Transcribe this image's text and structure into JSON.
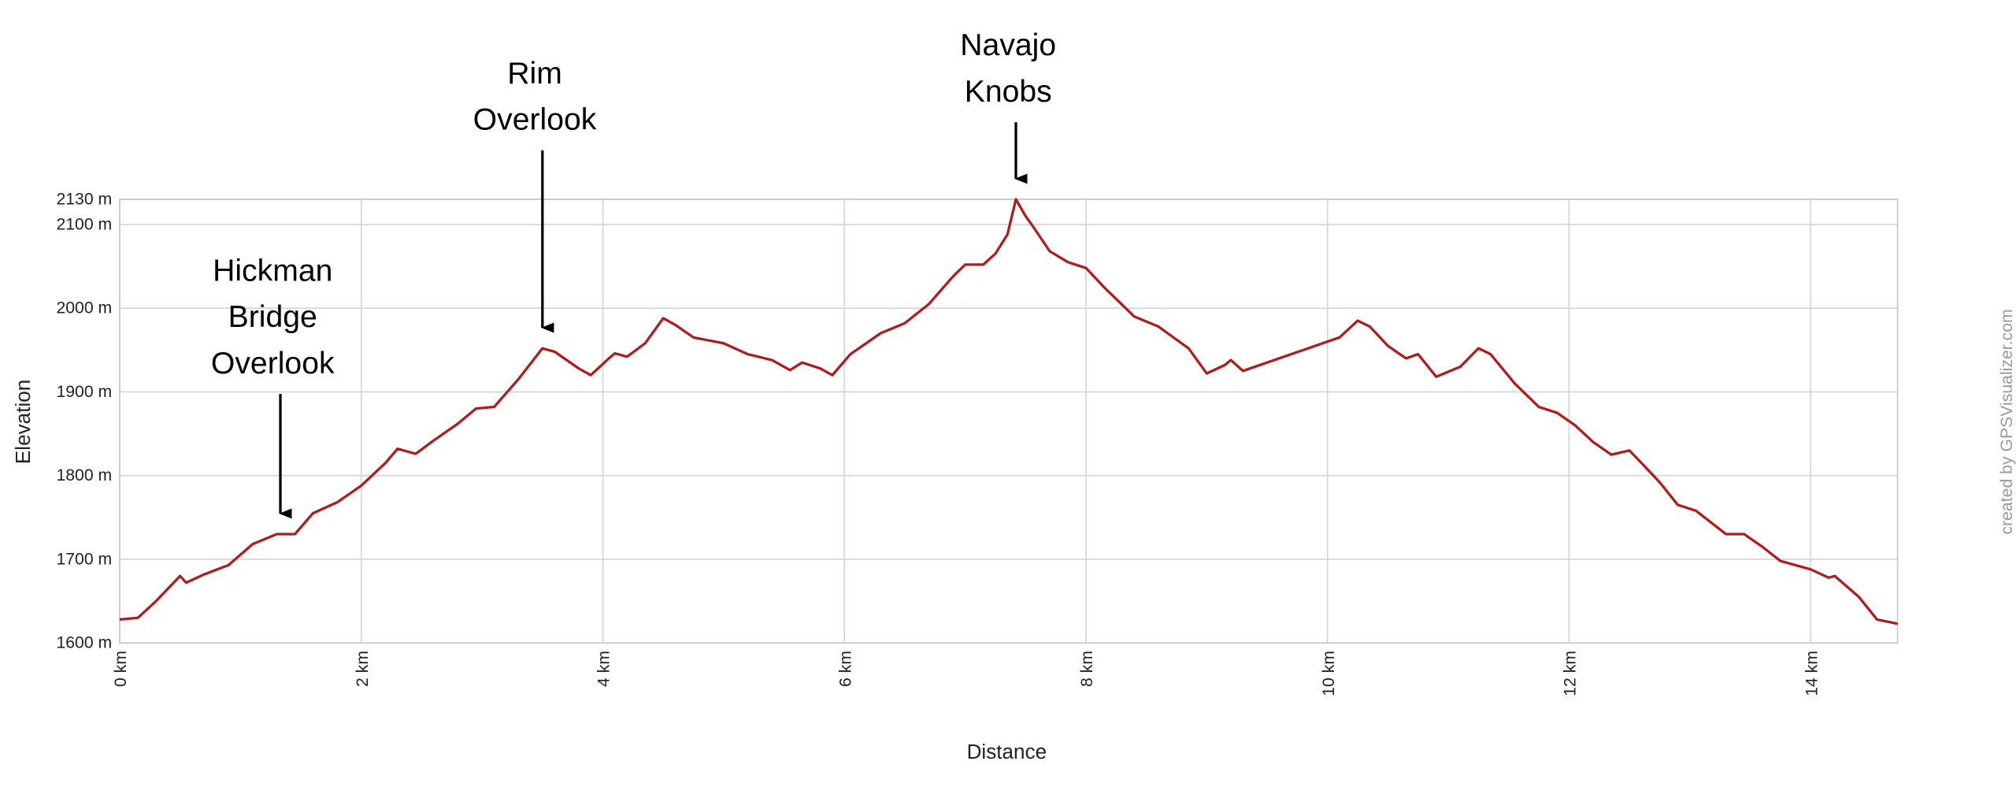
{
  "chart_data": {
    "type": "line",
    "x_label": "Distance",
    "y_label": "Elevation",
    "watermark": "created by GPSVisualizer.com",
    "color": "#b01c1c",
    "grid": true,
    "xlim": [
      0,
      14.72
    ],
    "ylim": [
      1600,
      2130
    ],
    "xticks": [
      {
        "value": 0,
        "label": "0 km"
      },
      {
        "value": 2,
        "label": "2 km"
      },
      {
        "value": 4,
        "label": "4 km"
      },
      {
        "value": 6,
        "label": "6 km"
      },
      {
        "value": 8,
        "label": "8 km"
      },
      {
        "value": 10,
        "label": "10 km"
      },
      {
        "value": 12,
        "label": "12 km"
      },
      {
        "value": 14,
        "label": "14 km"
      }
    ],
    "yticks": [
      {
        "value": 1600,
        "label": "1600 m"
      },
      {
        "value": 1700,
        "label": "1700 m"
      },
      {
        "value": 1800,
        "label": "1800 m"
      },
      {
        "value": 1900,
        "label": "1900 m"
      },
      {
        "value": 2000,
        "label": "2000 m"
      },
      {
        "value": 2100,
        "label": "2100 m"
      },
      {
        "value": 2130,
        "label": "2130 m"
      }
    ],
    "x": [
      0,
      0.15,
      0.3,
      0.5,
      0.55,
      0.7,
      0.9,
      1.1,
      1.3,
      1.45,
      1.6,
      1.8,
      2.0,
      2.2,
      2.3,
      2.45,
      2.6,
      2.8,
      2.95,
      3.1,
      3.3,
      3.5,
      3.6,
      3.8,
      3.9,
      4.05,
      4.1,
      4.2,
      4.35,
      4.5,
      4.6,
      4.75,
      5.0,
      5.2,
      5.4,
      5.55,
      5.65,
      5.8,
      5.9,
      6.05,
      6.3,
      6.5,
      6.7,
      6.9,
      7.0,
      7.15,
      7.25,
      7.35,
      7.42,
      7.5,
      7.55,
      7.7,
      7.85,
      8.0,
      8.15,
      8.4,
      8.6,
      8.85,
      9.0,
      9.15,
      9.2,
      9.3,
      9.5,
      9.7,
      9.9,
      10.1,
      10.25,
      10.35,
      10.5,
      10.65,
      10.75,
      10.9,
      11.1,
      11.25,
      11.35,
      11.55,
      11.75,
      11.9,
      12.05,
      12.2,
      12.35,
      12.5,
      12.6,
      12.75,
      12.9,
      13.05,
      13.3,
      13.45,
      13.6,
      13.75,
      14.0,
      14.15,
      14.2,
      14.4,
      14.55,
      14.72
    ],
    "values": [
      1628,
      1630,
      1650,
      1680,
      1672,
      1682,
      1693,
      1718,
      1730,
      1730,
      1755,
      1768,
      1788,
      1815,
      1832,
      1826,
      1842,
      1862,
      1880,
      1882,
      1915,
      1952,
      1948,
      1928,
      1920,
      1940,
      1946,
      1942,
      1958,
      1988,
      1980,
      1965,
      1958,
      1945,
      1938,
      1926,
      1935,
      1928,
      1920,
      1945,
      1970,
      1982,
      2005,
      2038,
      2052,
      2052,
      2065,
      2088,
      2130,
      2110,
      2100,
      2068,
      2055,
      2048,
      2025,
      1990,
      1978,
      1952,
      1922,
      1932,
      1938,
      1925,
      1935,
      1945,
      1955,
      1965,
      1985,
      1978,
      1955,
      1940,
      1945,
      1918,
      1930,
      1952,
      1945,
      1910,
      1882,
      1875,
      1860,
      1840,
      1825,
      1830,
      1815,
      1792,
      1765,
      1758,
      1730,
      1730,
      1715,
      1698,
      1688,
      1678,
      1680,
      1655,
      1628,
      1623
    ],
    "annotations": [
      {
        "text": [
          "Hickman",
          "Bridge",
          "Overlook"
        ],
        "x": 1.33
      },
      {
        "text": [
          "Rim",
          "Overlook"
        ],
        "x": 3.5
      },
      {
        "text": [
          "Navajo",
          "Knobs"
        ],
        "x": 7.42
      }
    ]
  }
}
